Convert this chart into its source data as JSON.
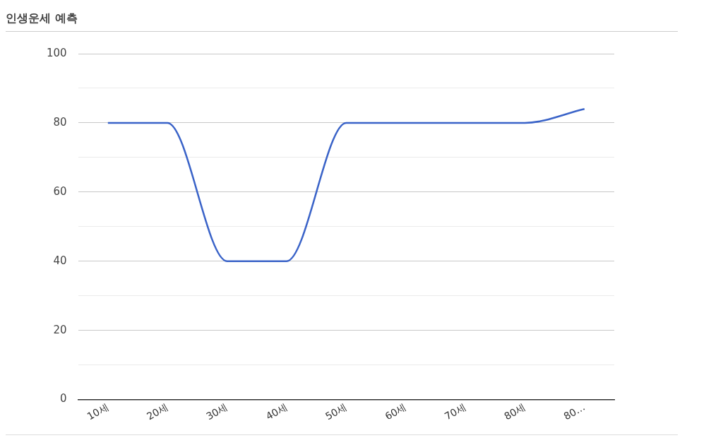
{
  "chart_data": {
    "type": "line",
    "title": "인생운세 예측",
    "categories": [
      "10세",
      "20세",
      "30세",
      "40세",
      "50세",
      "60세",
      "70세",
      "80세",
      "80…"
    ],
    "series": [
      {
        "color": "#3a63c8",
        "values": [
          80,
          80,
          40,
          40,
          80,
          80,
          80,
          80,
          84
        ]
      }
    ],
    "ylim": [
      0,
      100
    ],
    "yticks": [
      0,
      {
        "value": 10,
        "label": null
      },
      20,
      {
        "value": 30,
        "label": null
      },
      40,
      {
        "value": 50,
        "label": null
      },
      60,
      {
        "value": 70,
        "label": null
      },
      80,
      {
        "value": 90,
        "label": null
      },
      100
    ],
    "grid": "y",
    "legend": false,
    "marker": "none",
    "line_style": "solid"
  }
}
